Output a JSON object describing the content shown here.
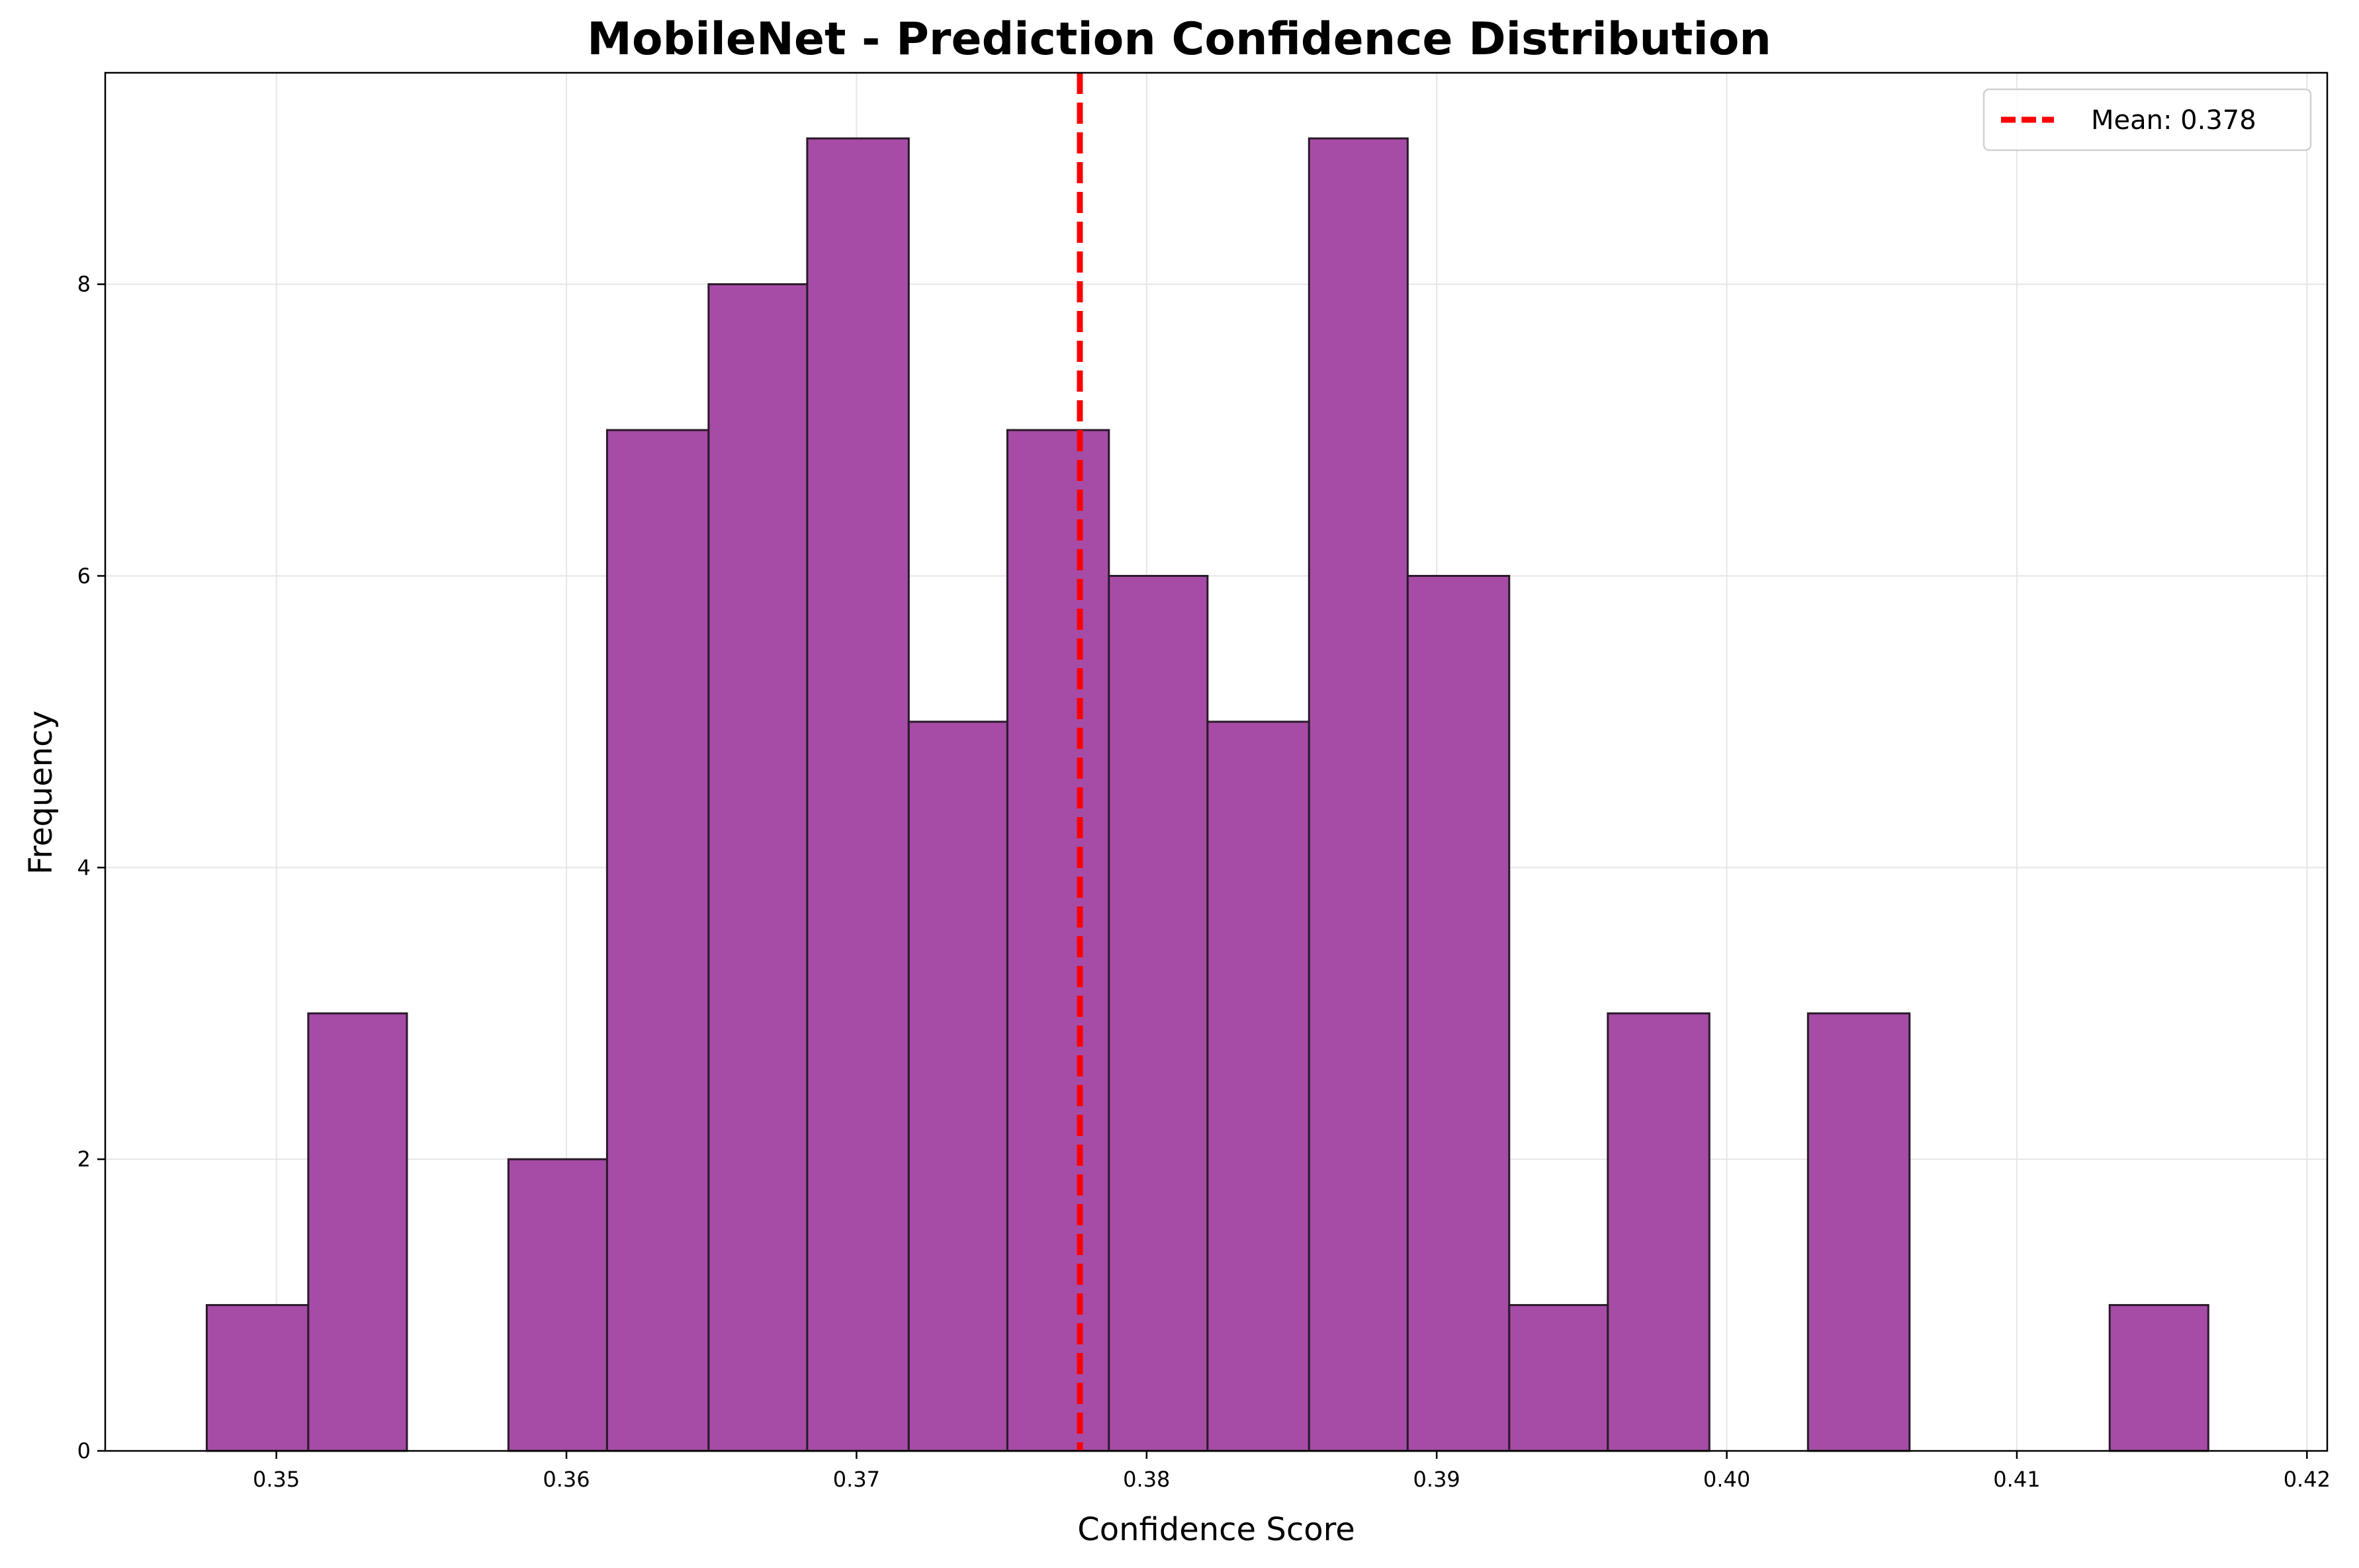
{
  "chart_data": {
    "type": "bar",
    "title": "MobileNet - Prediction Confidence Distribution",
    "xlabel": "Confidence Score",
    "ylabel": "Frequency",
    "xlim": [
      0.3441,
      0.4207
    ],
    "ylim": [
      0,
      9.45
    ],
    "xticks": [
      0.35,
      0.36,
      0.37,
      0.38,
      0.39,
      0.4,
      0.41,
      0.42
    ],
    "xtick_labels": [
      "0.35",
      "0.36",
      "0.37",
      "0.38",
      "0.39",
      "0.40",
      "0.41",
      "0.42"
    ],
    "yticks": [
      0,
      2,
      4,
      6,
      8
    ],
    "ytick_labels": [
      "0",
      "2",
      "4",
      "6",
      "8"
    ],
    "bin_edges": [
      0.3476,
      0.3511,
      0.3545,
      0.358,
      0.3614,
      0.3649,
      0.3683,
      0.3718,
      0.3752,
      0.3787,
      0.3821,
      0.3856,
      0.389,
      0.3925,
      0.3959,
      0.3994,
      0.4028,
      0.4063,
      0.4097,
      0.4132,
      0.4166
    ],
    "values": [
      1,
      3,
      0,
      2,
      7,
      8,
      9,
      5,
      7,
      6,
      5,
      9,
      6,
      1,
      3,
      0,
      3,
      0,
      0,
      1
    ],
    "mean": 0.3777,
    "legend": {
      "label": "Mean: 0.378",
      "placement": "top-right"
    },
    "grid": true,
    "colors": {
      "bar_fill": "#a64ca6",
      "bar_edge": "#2a1a2a",
      "mean_line": "#ff0000",
      "grid": "#e6e6e6"
    }
  }
}
